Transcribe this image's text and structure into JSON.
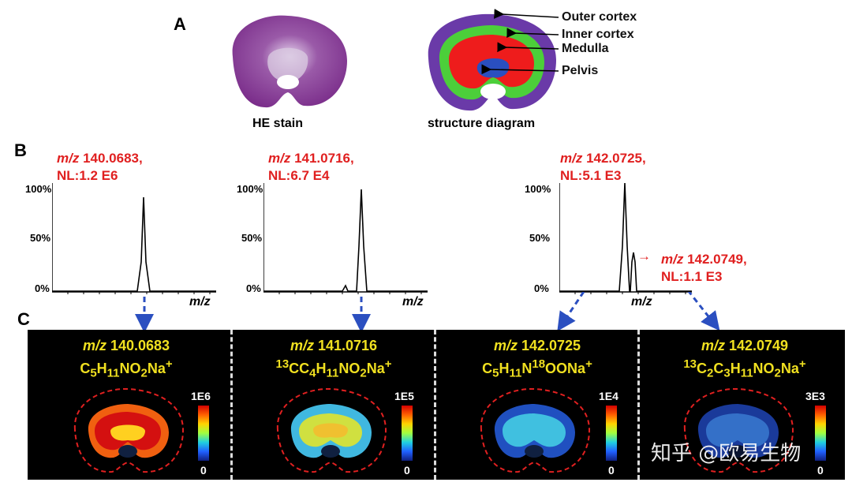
{
  "panel_a": {
    "letter": "A",
    "he_caption": "HE stain",
    "diagram_caption": "structure diagram",
    "regions": [
      "Outer cortex",
      "Inner cortex",
      "Medulla",
      "Pelvis"
    ],
    "region_colors": {
      "outer": "#6a3aa8",
      "inner": "#4ccf3a",
      "medulla": "#ee1c1c",
      "pelvis": "#2a4fc0"
    }
  },
  "panel_b": {
    "letter": "B",
    "spectra": [
      {
        "label_mz": "m/z",
        "label_val": " 140.0683,",
        "nl": "NL:1.2 E6"
      },
      {
        "label_mz": "m/z",
        "label_val": " 141.0716,",
        "nl": "NL:6.7 E4"
      },
      {
        "label_mz": "m/z",
        "label_val": " 142.0725,",
        "nl": "NL:5.1 E3"
      }
    ],
    "extra_peak": {
      "label_mz": "m/z",
      "label_val": " 142.0749,",
      "nl": "NL:1.1 E3",
      "arrow": "→"
    },
    "y_ticks": [
      "100%",
      "50%",
      "0%"
    ],
    "x_label": "m/z"
  },
  "panel_c": {
    "letter": "C",
    "images": [
      {
        "mz_prefix": "m/z",
        "mz": " 140.0683",
        "formula": "C5H11NO2Na+",
        "scale_top": "1E6",
        "scale_bot": "0"
      },
      {
        "mz_prefix": "m/z",
        "mz": " 141.0716",
        "formula": "13CC4H11NO2Na+",
        "scale_top": "1E5",
        "scale_bot": "0"
      },
      {
        "mz_prefix": "m/z",
        "mz": " 142.0725",
        "formula": "C5H11N18OONa+",
        "scale_top": "1E4",
        "scale_bot": "0"
      },
      {
        "mz_prefix": "m/z",
        "mz": " 142.0749",
        "formula": "13C2C3H11NO2Na+",
        "scale_top": "3E3",
        "scale_bot": "0"
      }
    ]
  },
  "watermark": "知乎 @欧易生物"
}
